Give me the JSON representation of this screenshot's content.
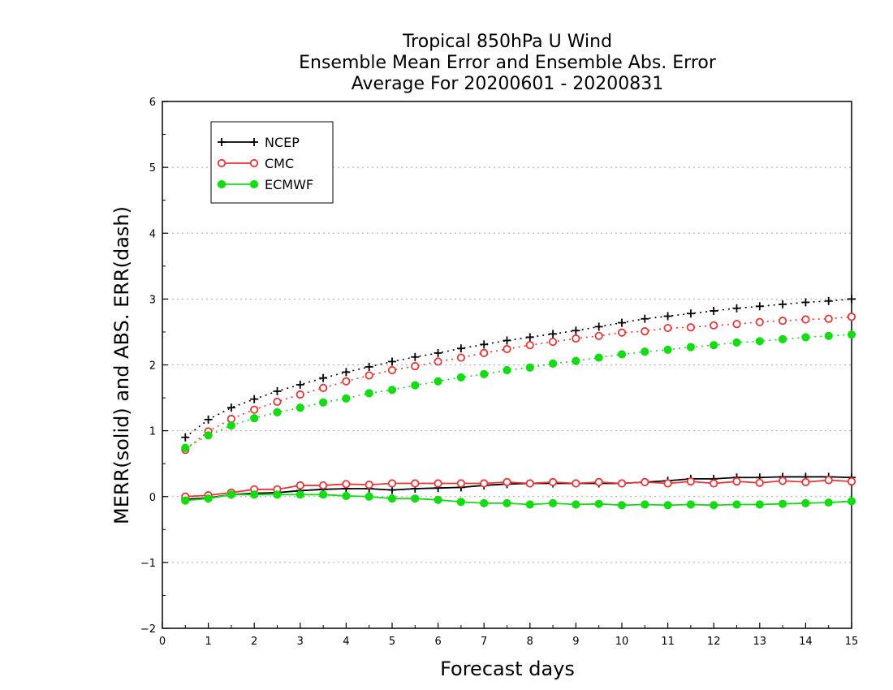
{
  "chart_data": {
    "type": "line",
    "title": [
      "Tropical 850hPa U Wind",
      "Ensemble Mean Error and Ensemble Abs. Error",
      "Average For 20200601 - 20200831"
    ],
    "xlabel": "Forecast days",
    "ylabel": "MERR(solid) and ABS. ERR(dash)",
    "xlim": [
      0,
      15
    ],
    "ylim": [
      -2,
      6
    ],
    "x_ticks": [
      "0",
      "1",
      "2",
      "3",
      "4",
      "5",
      "6",
      "7",
      "8",
      "9",
      "10",
      "11",
      "12",
      "13",
      "14",
      "15"
    ],
    "y_ticks": [
      "−2",
      "−1",
      "0",
      "1",
      "2",
      "3",
      "4",
      "5",
      "6"
    ],
    "grid": "horizontal dotted",
    "legend_position": "top-left",
    "x": [
      0.5,
      1,
      1.5,
      2,
      2.5,
      3,
      3.5,
      4,
      4.5,
      5,
      5.5,
      6,
      6.5,
      7,
      7.5,
      8,
      8.5,
      9,
      9.5,
      10,
      10.5,
      11,
      11.5,
      12,
      12.5,
      13,
      13.5,
      14,
      14.5,
      15
    ],
    "series": [
      {
        "name": "NCEP",
        "color": "#000000",
        "marker": "plus",
        "merr": [
          -0.04,
          -0.02,
          0.03,
          0.05,
          0.06,
          0.09,
          0.11,
          0.12,
          0.12,
          0.1,
          0.12,
          0.13,
          0.14,
          0.17,
          0.19,
          0.2,
          0.2,
          0.2,
          0.2,
          0.2,
          0.22,
          0.24,
          0.27,
          0.27,
          0.29,
          0.29,
          0.3,
          0.3,
          0.3,
          0.29
        ],
        "abs_err": [
          0.9,
          1.17,
          1.35,
          1.48,
          1.6,
          1.7,
          1.8,
          1.89,
          1.97,
          2.05,
          2.12,
          2.18,
          2.25,
          2.31,
          2.37,
          2.42,
          2.47,
          2.52,
          2.58,
          2.64,
          2.7,
          2.74,
          2.78,
          2.82,
          2.86,
          2.89,
          2.92,
          2.95,
          2.97,
          3.0
        ]
      },
      {
        "name": "CMC",
        "color": "#ee3333",
        "marker": "open-circle",
        "merr": [
          0.0,
          0.02,
          0.06,
          0.11,
          0.11,
          0.17,
          0.17,
          0.19,
          0.18,
          0.2,
          0.2,
          0.2,
          0.2,
          0.2,
          0.22,
          0.2,
          0.22,
          0.2,
          0.22,
          0.2,
          0.22,
          0.2,
          0.23,
          0.2,
          0.23,
          0.21,
          0.24,
          0.22,
          0.25,
          0.23
        ],
        "abs_err": [
          0.71,
          0.99,
          1.18,
          1.32,
          1.44,
          1.55,
          1.65,
          1.75,
          1.84,
          1.92,
          1.98,
          2.05,
          2.11,
          2.18,
          2.24,
          2.3,
          2.35,
          2.4,
          2.44,
          2.49,
          2.51,
          2.56,
          2.57,
          2.6,
          2.62,
          2.65,
          2.67,
          2.69,
          2.7,
          2.73
        ]
      },
      {
        "name": "ECMWF",
        "color": "#11dd11",
        "marker": "filled-circle",
        "merr": [
          -0.06,
          -0.03,
          0.03,
          0.03,
          0.03,
          0.03,
          0.03,
          0.01,
          0.0,
          -0.03,
          -0.03,
          -0.05,
          -0.08,
          -0.1,
          -0.1,
          -0.12,
          -0.1,
          -0.12,
          -0.11,
          -0.13,
          -0.12,
          -0.13,
          -0.12,
          -0.13,
          -0.12,
          -0.12,
          -0.11,
          -0.1,
          -0.09,
          -0.07
        ],
        "abs_err": [
          0.74,
          0.93,
          1.08,
          1.19,
          1.28,
          1.35,
          1.43,
          1.49,
          1.57,
          1.62,
          1.69,
          1.75,
          1.81,
          1.86,
          1.92,
          1.96,
          2.02,
          2.06,
          2.11,
          2.16,
          2.2,
          2.23,
          2.27,
          2.3,
          2.34,
          2.36,
          2.39,
          2.42,
          2.44,
          2.46
        ]
      }
    ]
  }
}
